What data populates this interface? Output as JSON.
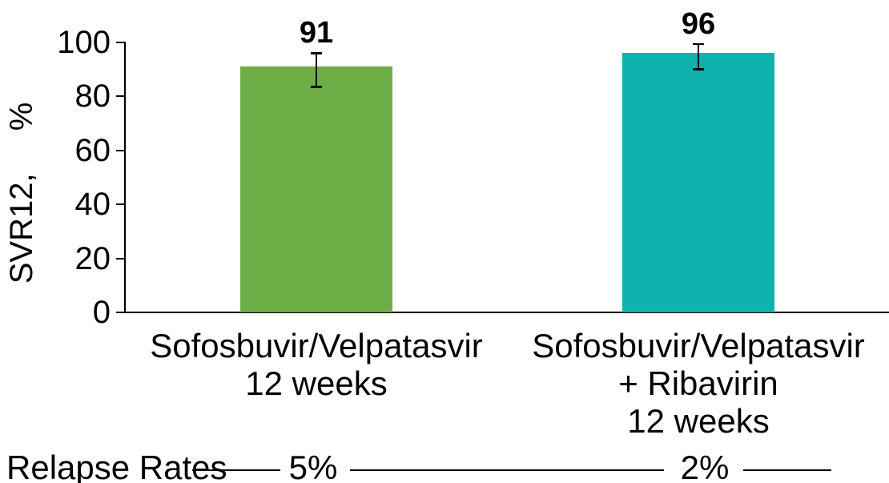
{
  "chart_data": {
    "type": "bar",
    "title": "",
    "ylabel": "SVR12, %",
    "xlabel": "",
    "ylim": [
      0,
      100
    ],
    "yticks": [
      0,
      20,
      40,
      60,
      80,
      100
    ],
    "grid": false,
    "legend": false,
    "background_color": "#FFFFFF",
    "axis_color": "#000000",
    "categories": [
      "Sofosbuvir/Velpatasvir 12 weeks",
      "Sofosbuvir/Velpatasvir + Ribavirin 12 weeks"
    ],
    "category_lines": [
      [
        "Sofosbuvir/Velpatasvir",
        "12 weeks"
      ],
      [
        "Sofosbuvir/Velpatasvir",
        "+ Ribavirin",
        "12 weeks"
      ]
    ],
    "values": [
      91,
      96
    ],
    "value_labels": [
      "91",
      "96"
    ],
    "error_bars": [
      {
        "low": 83.5,
        "high": 96
      },
      {
        "low": 90,
        "high": 99.5
      }
    ],
    "bar_colors": [
      "#6FAD47",
      "#0FB2AC"
    ],
    "footer": {
      "label": "Relapse Rates",
      "values": [
        "5%",
        "2%"
      ]
    }
  }
}
